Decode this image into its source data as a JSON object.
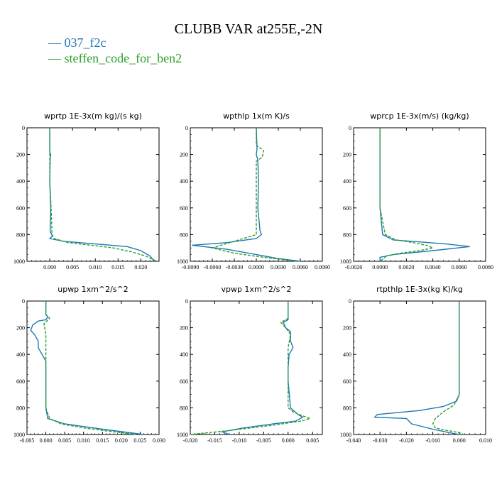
{
  "page": {
    "title": "CLUBB VAR at255E,-2N",
    "legend": [
      {
        "label": "037_f2c",
        "color": "#1f77b4"
      },
      {
        "label": "steffen_code_for_ben2",
        "color": "#2ca02c"
      }
    ]
  },
  "chart_data": [
    {
      "type": "line",
      "title": "wprtp   1E-3x(m kg)/(s kg)",
      "xlim": [
        -0.005,
        0.024
      ],
      "ylim": [
        1000,
        0
      ],
      "xticks": [
        0.0,
        0.005,
        0.01,
        0.015,
        0.02
      ],
      "xtick_labels": [
        "0.000",
        "0.005",
        "0.010",
        "0.015",
        "0.020"
      ],
      "yticks": [
        0,
        200,
        400,
        600,
        800,
        1000
      ],
      "series": [
        {
          "name": "037_f2c",
          "x": [
            0.0,
            0.0,
            0.0002,
            0.0001,
            0.0,
            0.0002,
            0.0001,
            0.0006,
            0.0,
            0.003,
            0.01,
            0.017,
            0.02,
            0.022,
            0.023
          ],
          "y": [
            0,
            180,
            200,
            230,
            400,
            600,
            780,
            810,
            830,
            850,
            870,
            890,
            920,
            960,
            1000
          ]
        },
        {
          "name": "steffen_code_for_ben2",
          "x": [
            0.0,
            0.0,
            0.0,
            0.0003,
            0.0005,
            0.001,
            0.004,
            0.009,
            0.014,
            0.018,
            0.021,
            0.0235
          ],
          "y": [
            0,
            200,
            400,
            600,
            800,
            830,
            860,
            880,
            900,
            930,
            960,
            1000
          ]
        }
      ]
    },
    {
      "type": "line",
      "title": "wpthlp   1x(m K)/s",
      "xlim": [
        -0.009,
        0.009
      ],
      "ylim": [
        1000,
        0
      ],
      "xticks": [
        -0.009,
        -0.006,
        -0.003,
        0.0,
        0.003,
        0.006,
        0.009
      ],
      "xtick_labels": [
        "-0.0090",
        "-0.0060",
        "-0.0030",
        "0.0000",
        "0.0030",
        "0.0060",
        "0.0090"
      ],
      "yticks": [
        0,
        200,
        400,
        600,
        800,
        1000
      ],
      "series": [
        {
          "name": "037_f2c",
          "x": [
            0.0,
            0.0001,
            0.0,
            0.0002,
            0.0003,
            0.0002,
            0.0005,
            0.0007,
            0.0,
            -0.004,
            -0.0088,
            -0.004,
            0.0,
            0.003,
            0.006
          ],
          "y": [
            0,
            160,
            200,
            240,
            400,
            600,
            770,
            800,
            830,
            860,
            880,
            910,
            950,
            980,
            1000
          ]
        },
        {
          "name": "steffen_code_for_ben2",
          "x": [
            0.0,
            0.0,
            0.001,
            0.0008,
            0.0,
            0.0,
            0.0,
            0.0,
            -0.003,
            -0.006,
            -0.003,
            0.001,
            0.0055
          ],
          "y": [
            0,
            130,
            170,
            220,
            250,
            400,
            600,
            800,
            850,
            900,
            940,
            970,
            1000
          ]
        }
      ]
    },
    {
      "type": "line",
      "title": "wprcp   1E-3x(m/s) (kg/kg)",
      "xlim": [
        -0.002,
        0.008
      ],
      "ylim": [
        1000,
        0
      ],
      "xticks": [
        -0.002,
        0.0,
        0.002,
        0.004,
        0.006,
        0.008
      ],
      "xtick_labels": [
        "-0.0020",
        "0.0000",
        "0.0020",
        "0.0040",
        "0.0060",
        "0.0080"
      ],
      "yticks": [
        0,
        200,
        400,
        600,
        800,
        1000
      ],
      "series": [
        {
          "name": "037_f2c",
          "x": [
            0.0,
            0.0,
            0.0,
            0.0002,
            0.001,
            0.003,
            0.005,
            0.0068,
            0.004,
            0.001,
            0.0,
            0.0
          ],
          "y": [
            0,
            200,
            600,
            800,
            840,
            855,
            870,
            890,
            920,
            950,
            970,
            1000
          ]
        },
        {
          "name": "steffen_code_for_ben2",
          "x": [
            0.0,
            0.0,
            0.0,
            0.0004,
            0.0012,
            0.0025,
            0.0035,
            0.004,
            0.003,
            0.0015,
            0.0005,
            0.0
          ],
          "y": [
            0,
            200,
            600,
            800,
            840,
            860,
            880,
            900,
            920,
            940,
            960,
            1000
          ]
        }
      ]
    },
    {
      "type": "line",
      "title": "upwp   1xm^2/s^2",
      "xlim": [
        -0.005,
        0.03
      ],
      "ylim": [
        1000,
        0
      ],
      "xticks": [
        -0.005,
        0.0,
        0.005,
        0.01,
        0.015,
        0.02,
        0.025,
        0.03
      ],
      "xtick_labels": [
        "-0.005",
        "0.000",
        "0.005",
        "0.010",
        "0.015",
        "0.020",
        "0.025",
        "0.030"
      ],
      "yticks": [
        0,
        200,
        400,
        600,
        800,
        1000
      ],
      "series": [
        {
          "name": "037_f2c",
          "x": [
            0.0,
            0.0,
            0.0005,
            0.0,
            -0.002,
            -0.0035,
            -0.004,
            -0.003,
            -0.002,
            -0.002,
            -0.001,
            0.0,
            0.0,
            0.0,
            0.0,
            0.0005,
            0.005,
            0.015,
            0.026
          ],
          "y": [
            0,
            100,
            120,
            140,
            150,
            180,
            220,
            250,
            300,
            350,
            400,
            450,
            500,
            600,
            800,
            880,
            920,
            960,
            1000
          ]
        },
        {
          "name": "steffen_code_for_ben2",
          "x": [
            0.0,
            0.0,
            0.001,
            -0.0005,
            0.0,
            0.0,
            0.0,
            0.0,
            0.001,
            0.004,
            0.01,
            0.018,
            0.024
          ],
          "y": [
            0,
            100,
            130,
            170,
            250,
            400,
            600,
            800,
            880,
            920,
            950,
            980,
            1000
          ]
        }
      ]
    },
    {
      "type": "line",
      "title": "vpwp   1xm^2/s^2",
      "xlim": [
        -0.02,
        0.007
      ],
      "ylim": [
        1000,
        0
      ],
      "xticks": [
        -0.02,
        -0.015,
        -0.01,
        -0.005,
        0.0,
        0.005
      ],
      "xtick_labels": [
        "-0.020",
        "-0.015",
        "-0.010",
        "-0.005",
        "0.000",
        "0.005"
      ],
      "yticks": [
        0,
        200,
        400,
        600,
        800,
        1000
      ],
      "series": [
        {
          "name": "037_f2c",
          "x": [
            0.0,
            0.0,
            -0.001,
            -0.0005,
            0.0005,
            0.0005,
            0.001,
            0.0002,
            0.0,
            0.0,
            0.0005,
            0.002,
            0.003,
            0.0015,
            -0.003,
            -0.009,
            -0.0135,
            -0.012
          ],
          "y": [
            0,
            140,
            160,
            200,
            230,
            300,
            350,
            400,
            500,
            600,
            800,
            850,
            870,
            900,
            920,
            950,
            980,
            1000
          ]
        },
        {
          "name": "steffen_code_for_ben2",
          "x": [
            0.0,
            0.0,
            -0.0015,
            -0.0005,
            0.0005,
            0.0,
            0.0,
            0.0,
            0.001,
            0.003,
            0.0045,
            0.0025,
            -0.003,
            -0.012,
            -0.02
          ],
          "y": [
            0,
            130,
            160,
            200,
            250,
            350,
            600,
            800,
            830,
            860,
            880,
            900,
            930,
            970,
            1000
          ]
        }
      ]
    },
    {
      "type": "line",
      "title": "rtpthlp   1E-3x(kg K)/kg",
      "xlim": [
        -0.04,
        0.01
      ],
      "ylim": [
        1000,
        0
      ],
      "xticks": [
        -0.04,
        -0.03,
        -0.02,
        -0.01,
        0.0,
        0.01
      ],
      "xtick_labels": [
        "-0.040",
        "-0.030",
        "-0.020",
        "-0.010",
        "0.000",
        "0.010"
      ],
      "yticks": [
        0,
        200,
        400,
        600,
        800,
        1000
      ],
      "series": [
        {
          "name": "037_f2c",
          "x": [
            0.0,
            0.0,
            0.0,
            -0.001,
            -0.006,
            -0.015,
            -0.031,
            -0.032,
            -0.02,
            -0.018,
            -0.01,
            -0.004,
            0.0
          ],
          "y": [
            0,
            400,
            700,
            750,
            790,
            820,
            850,
            870,
            880,
            920,
            960,
            985,
            1000
          ]
        },
        {
          "name": "steffen_code_for_ben2",
          "x": [
            0.0,
            0.0,
            0.0,
            -0.002,
            -0.006,
            -0.009,
            -0.01,
            -0.009,
            -0.006,
            -0.003,
            0.0,
            0.001,
            0.002
          ],
          "y": [
            0,
            400,
            700,
            780,
            830,
            880,
            920,
            950,
            965,
            975,
            985,
            995,
            1000
          ]
        }
      ]
    }
  ]
}
